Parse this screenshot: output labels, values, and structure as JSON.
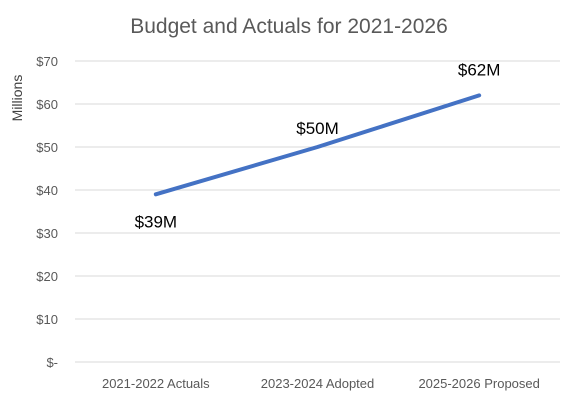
{
  "chart_data": {
    "type": "line",
    "title": "Budget and Actuals for 2021-2026",
    "ylabel": "Millions",
    "xlabel": "",
    "categories": [
      "2021-2022 Actuals",
      "2023-2024 Adopted",
      "2025-2026 Proposed"
    ],
    "series": [
      {
        "values": [
          39,
          50,
          62
        ],
        "data_labels": [
          "$39M",
          "$50M",
          "$62M"
        ]
      }
    ],
    "ylim": [
      0,
      70
    ],
    "yticks": [
      0,
      10,
      20,
      30,
      40,
      50,
      60,
      70
    ],
    "ytick_labels": [
      "$-",
      "$10",
      "$20",
      "$30",
      "$40",
      "$50",
      "$60",
      "$70"
    ],
    "grid": true,
    "legend": "none",
    "line_color": "#4472c4"
  }
}
